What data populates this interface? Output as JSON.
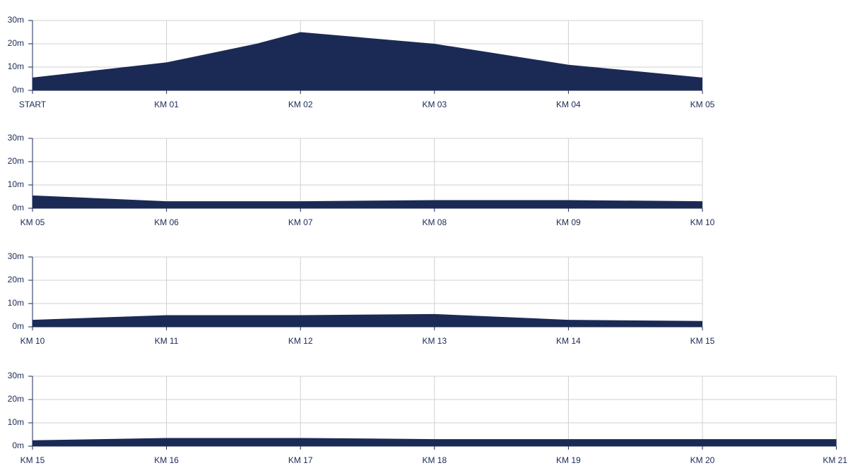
{
  "chart_data": [
    {
      "type": "area",
      "color": "#1b2a55",
      "grid": true,
      "x": [
        0,
        1,
        1.67,
        2,
        3,
        4,
        5
      ],
      "values": [
        5.5,
        12,
        20,
        25,
        20,
        11,
        5.5
      ],
      "xlim": [
        0,
        5
      ],
      "xticks": [
        {
          "value": 0,
          "label": "START"
        },
        {
          "value": 1,
          "label": "KM 01"
        },
        {
          "value": 2,
          "label": "KM 02"
        },
        {
          "value": 3,
          "label": "KM 03"
        },
        {
          "value": 4,
          "label": "KM 04"
        },
        {
          "value": 5,
          "label": "KM 05"
        }
      ],
      "ylim": [
        0,
        30
      ],
      "yticks": [
        {
          "value": 0,
          "label": "0m"
        },
        {
          "value": 10,
          "label": "10m"
        },
        {
          "value": 20,
          "label": "20m"
        },
        {
          "value": 30,
          "label": "30m"
        }
      ]
    },
    {
      "type": "area",
      "color": "#1b2a55",
      "grid": true,
      "x": [
        5,
        6,
        7,
        8,
        9,
        10
      ],
      "values": [
        5.5,
        3,
        3,
        3.5,
        3.5,
        3
      ],
      "xlim": [
        5,
        10
      ],
      "xticks": [
        {
          "value": 5,
          "label": "KM 05"
        },
        {
          "value": 6,
          "label": "KM 06"
        },
        {
          "value": 7,
          "label": "KM 07"
        },
        {
          "value": 8,
          "label": "KM 08"
        },
        {
          "value": 9,
          "label": "KM 09"
        },
        {
          "value": 10,
          "label": "KM 10"
        }
      ],
      "ylim": [
        0,
        30
      ],
      "yticks": [
        {
          "value": 0,
          "label": "0m"
        },
        {
          "value": 10,
          "label": "10m"
        },
        {
          "value": 20,
          "label": "20m"
        },
        {
          "value": 30,
          "label": "30m"
        }
      ]
    },
    {
      "type": "area",
      "color": "#1b2a55",
      "grid": true,
      "x": [
        10,
        11,
        12,
        13,
        14,
        15
      ],
      "values": [
        3,
        5,
        5,
        5.5,
        3,
        2.5
      ],
      "xlim": [
        10,
        15
      ],
      "xticks": [
        {
          "value": 10,
          "label": "KM 10"
        },
        {
          "value": 11,
          "label": "KM 11"
        },
        {
          "value": 12,
          "label": "KM 12"
        },
        {
          "value": 13,
          "label": "KM 13"
        },
        {
          "value": 14,
          "label": "KM 14"
        },
        {
          "value": 15,
          "label": "KM 15"
        }
      ],
      "ylim": [
        0,
        30
      ],
      "yticks": [
        {
          "value": 0,
          "label": "0m"
        },
        {
          "value": 10,
          "label": "10m"
        },
        {
          "value": 20,
          "label": "20m"
        },
        {
          "value": 30,
          "label": "30m"
        }
      ]
    },
    {
      "type": "area",
      "color": "#1b2a55",
      "grid": true,
      "x": [
        15,
        16,
        17,
        18,
        19,
        20,
        21
      ],
      "values": [
        2.5,
        3.5,
        3.5,
        3,
        3,
        3,
        3
      ],
      "xlim": [
        15,
        21
      ],
      "xticks": [
        {
          "value": 15,
          "label": "KM 15"
        },
        {
          "value": 16,
          "label": "KM 16"
        },
        {
          "value": 17,
          "label": "KM 17"
        },
        {
          "value": 18,
          "label": "KM 18"
        },
        {
          "value": 19,
          "label": "KM 19"
        },
        {
          "value": 20,
          "label": "KM 20"
        },
        {
          "value": 21,
          "label": "KM 21"
        }
      ],
      "ylim": [
        0,
        30
      ],
      "yticks": [
        {
          "value": 0,
          "label": "0m"
        },
        {
          "value": 10,
          "label": "10m"
        },
        {
          "value": 20,
          "label": "20m"
        },
        {
          "value": 30,
          "label": "30m"
        }
      ]
    }
  ]
}
